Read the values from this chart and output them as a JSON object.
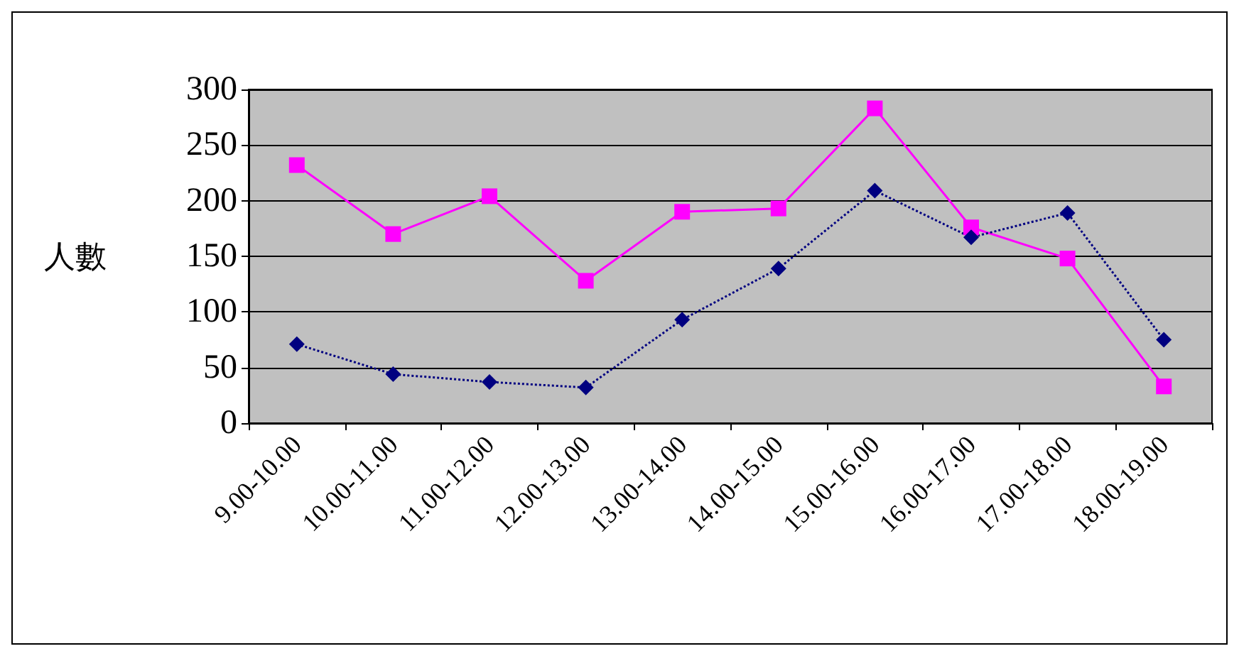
{
  "chart_data": {
    "type": "line",
    "ylabel": "人數",
    "categories": [
      "9.00-10.00",
      "10.00-11.00",
      "11.00-12.00",
      "12.00-13.00",
      "13.00-14.00",
      "14.00-15.00",
      "15.00-16.00",
      "16.00-17.00",
      "17.00-18.00",
      "18.00-19.00"
    ],
    "series": [
      {
        "color": "#ff00ff",
        "marker": "square",
        "line_style": "solid",
        "values": [
          232,
          170,
          204,
          128,
          190,
          193,
          283,
          176,
          148,
          33
        ]
      },
      {
        "color": "#000080",
        "marker": "diamond",
        "line_style": "dotted",
        "values": [
          71,
          44,
          37,
          32,
          93,
          139,
          209,
          167,
          189,
          75
        ]
      }
    ],
    "ylim": [
      0,
      300
    ],
    "yticks": [
      0,
      50,
      100,
      150,
      200,
      250,
      300
    ],
    "grid": "y"
  }
}
